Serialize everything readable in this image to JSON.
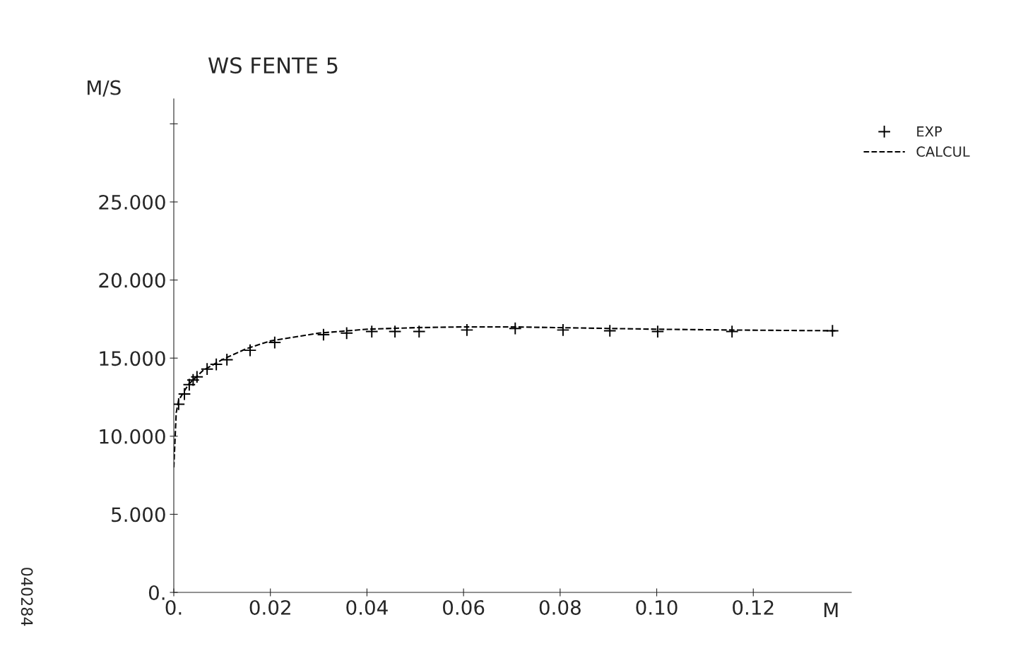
{
  "chart_data": {
    "type": "line",
    "title": "WS FENTE 5",
    "ylabel": "M/S",
    "xlabel": "M",
    "series": [
      {
        "name": "EXP",
        "type": "scatter",
        "marker": "cross",
        "color": "#000000",
        "x": [
          0.001,
          0.0022,
          0.0032,
          0.004,
          0.0048,
          0.0069,
          0.0088,
          0.011,
          0.0158,
          0.0209,
          0.031,
          0.0358,
          0.041,
          0.0458,
          0.0508,
          0.0607,
          0.0707,
          0.0806,
          0.0903,
          0.1002,
          0.1156,
          0.1364
        ],
        "values": [
          12.05,
          12.7,
          13.3,
          13.6,
          13.8,
          14.3,
          14.6,
          14.9,
          15.5,
          16.0,
          16.5,
          16.6,
          16.7,
          16.7,
          16.7,
          16.8,
          16.9,
          16.8,
          16.75,
          16.7,
          16.7,
          16.75
        ]
      },
      {
        "name": "CALCUL",
        "line_style": "dashed",
        "color": "#000000",
        "x": [
          0.0,
          0.0005,
          0.001,
          0.003,
          0.006,
          0.01,
          0.015,
          0.02,
          0.03,
          0.04,
          0.05,
          0.06,
          0.07,
          0.08,
          0.09,
          0.1,
          0.115,
          0.137
        ],
        "values": [
          8.0,
          11.5,
          12.3,
          13.3,
          14.2,
          14.9,
          15.6,
          16.1,
          16.6,
          16.85,
          16.95,
          17.0,
          17.0,
          16.95,
          16.9,
          16.85,
          16.8,
          16.75
        ]
      }
    ],
    "xlim": [
      0,
      0.1403
    ],
    "ylim": [
      0,
      31.6
    ],
    "xticks": [
      {
        "value": 0,
        "label": "0."
      },
      {
        "value": 0.02,
        "label": "0.02"
      },
      {
        "value": 0.04,
        "label": "0.04"
      },
      {
        "value": 0.06,
        "label": "0.06"
      },
      {
        "value": 0.08,
        "label": "0.08"
      },
      {
        "value": 0.1,
        "label": "0.10"
      },
      {
        "value": 0.12,
        "label": "0.12"
      }
    ],
    "yticks": [
      {
        "value": 0,
        "label": "0."
      },
      {
        "value": 5,
        "label": "5.000"
      },
      {
        "value": 10,
        "label": "10.000"
      },
      {
        "value": 15,
        "label": "15.000"
      },
      {
        "value": 20,
        "label": "20.000"
      },
      {
        "value": 25,
        "label": "25.000"
      },
      {
        "value": 30,
        "label": null
      }
    ],
    "grid": false,
    "legend": "top right",
    "annotations": [
      "040284"
    ]
  }
}
